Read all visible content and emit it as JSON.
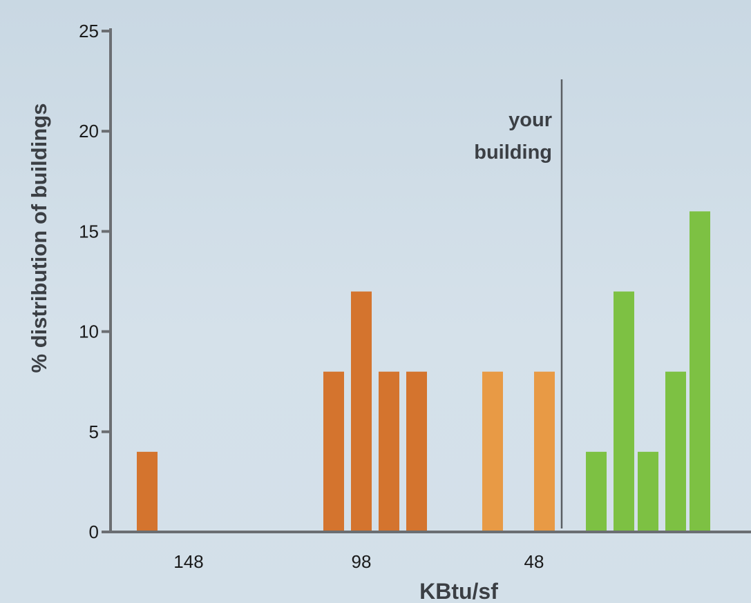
{
  "chart_data": {
    "type": "bar",
    "title": "",
    "xlabel": "KBtu/sf",
    "ylabel": "% distribution of buildings",
    "ylim": [
      0,
      25
    ],
    "yticks": [
      0,
      5,
      10,
      15,
      20,
      25
    ],
    "xlim": [
      163,
      25
    ],
    "xticks": [
      148,
      98,
      48
    ],
    "grid": false,
    "legend": "none",
    "bar_width": 6,
    "marker": {
      "label_line1": "your",
      "label_line2": "building",
      "x": 40
    },
    "colors": {
      "high": "#d4742e",
      "mid": "#e89a45",
      "low": "#7dc143",
      "axis": "#6b6e72",
      "marker": "#5a5e63"
    },
    "bars": [
      {
        "x": 160,
        "value": 4,
        "group": "high"
      },
      {
        "x": 106,
        "value": 8,
        "group": "high"
      },
      {
        "x": 98,
        "value": 12,
        "group": "high"
      },
      {
        "x": 90,
        "value": 8,
        "group": "high"
      },
      {
        "x": 82,
        "value": 8,
        "group": "high"
      },
      {
        "x": 60,
        "value": 8,
        "group": "mid"
      },
      {
        "x": 45,
        "value": 8,
        "group": "mid"
      },
      {
        "x": 30,
        "value": 4,
        "group": "low"
      },
      {
        "x": 22,
        "value": 12,
        "group": "low"
      },
      {
        "x": 15,
        "value": 4,
        "group": "low"
      },
      {
        "x": 7,
        "value": 8,
        "group": "low"
      },
      {
        "x": 0,
        "value": 16,
        "group": "low"
      }
    ]
  }
}
